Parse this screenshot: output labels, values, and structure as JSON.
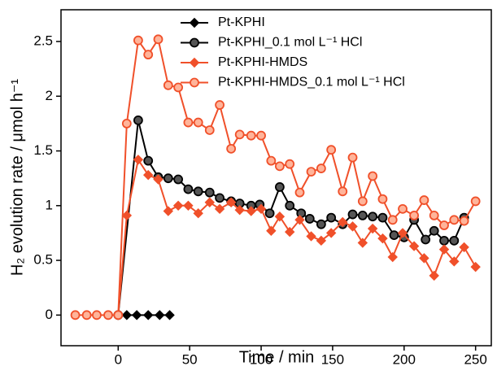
{
  "chart_data": {
    "type": "line",
    "xlabel": "Time / min",
    "ylabel": "H₂ evolution rate / μmol h⁻¹",
    "xlim": [
      -40,
      261
    ],
    "ylim": [
      -0.28,
      2.79
    ],
    "xticks": [
      0,
      50,
      100,
      150,
      200,
      250
    ],
    "yticks": [
      0,
      0.5,
      1,
      1.5,
      2,
      2.5
    ],
    "legend": "upper right",
    "series": [
      {
        "name": "Pt-KPHI",
        "color": "#000000",
        "marker": "diamond",
        "x": [
          6,
          13,
          21,
          29,
          36
        ],
        "values": [
          0,
          0,
          0,
          0,
          0
        ]
      },
      {
        "name": "Pt-KPHI_0.1 mol L⁻¹ HCl",
        "color": "#000000",
        "marker": "circle",
        "x": [
          0,
          14,
          21,
          28,
          35,
          42,
          49,
          56,
          64,
          71,
          79,
          85,
          93,
          99,
          106,
          113,
          120,
          128,
          134,
          142,
          149,
          157,
          164,
          171,
          178,
          185,
          193,
          200,
          207,
          215,
          221,
          228,
          235,
          242
        ],
        "values": [
          0,
          1.78,
          1.41,
          1.26,
          1.25,
          1.24,
          1.15,
          1.13,
          1.12,
          1.07,
          1.04,
          1.02,
          1.0,
          1.01,
          0.93,
          1.17,
          1.0,
          0.93,
          0.88,
          0.83,
          0.89,
          0.83,
          0.92,
          0.91,
          0.9,
          0.89,
          0.73,
          0.71,
          0.87,
          0.69,
          0.77,
          0.68,
          0.68,
          0.89
        ]
      },
      {
        "name": "Pt-KPHI-HMDS",
        "color": "#f0502a",
        "marker": "diamond",
        "x": [
          0,
          6,
          14,
          21,
          28,
          35,
          42,
          49,
          56,
          64,
          71,
          79,
          85,
          93,
          100,
          107,
          113,
          120,
          127,
          135,
          142,
          149,
          157,
          164,
          171,
          178,
          185,
          192,
          199,
          207,
          214,
          221,
          228,
          235,
          242,
          250
        ],
        "values": [
          0,
          0.91,
          1.42,
          1.28,
          1.24,
          0.95,
          1.0,
          1.0,
          0.93,
          1.03,
          0.97,
          1.03,
          0.96,
          0.95,
          0.97,
          0.77,
          0.9,
          0.76,
          0.87,
          0.72,
          0.68,
          0.75,
          0.85,
          0.81,
          0.66,
          0.79,
          0.7,
          0.53,
          0.75,
          0.63,
          0.52,
          0.36,
          0.6,
          0.49,
          0.62,
          0.44
        ]
      },
      {
        "name": "Pt-KPHI-HMDS_0.1 mol L⁻¹ HCl",
        "color": "#f0502a",
        "marker": "circle",
        "x": [
          -30,
          -22,
          -15,
          -7,
          0,
          6,
          14,
          21,
          28,
          35,
          42,
          49,
          56,
          64,
          71,
          79,
          85,
          93,
          100,
          107,
          113,
          120,
          127,
          135,
          142,
          149,
          157,
          164,
          171,
          178,
          185,
          192,
          199,
          207,
          214,
          221,
          228,
          235,
          242,
          250
        ],
        "values": [
          0,
          0,
          0,
          0,
          0,
          1.75,
          2.51,
          2.38,
          2.52,
          2.1,
          2.08,
          1.76,
          1.76,
          1.69,
          1.92,
          1.52,
          1.65,
          1.64,
          1.64,
          1.41,
          1.36,
          1.38,
          1.12,
          1.31,
          1.34,
          1.51,
          1.13,
          1.44,
          1.04,
          1.27,
          1.06,
          0.87,
          0.97,
          0.91,
          1.05,
          0.91,
          0.82,
          0.87,
          0.86,
          1.04
        ]
      }
    ]
  }
}
